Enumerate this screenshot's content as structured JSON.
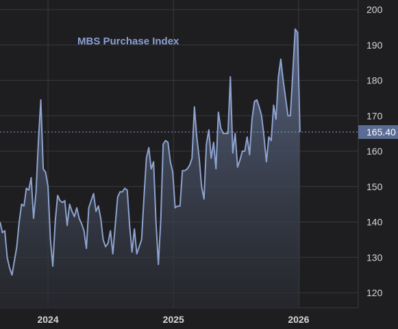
{
  "chart_data": {
    "type": "area",
    "title": "MBS Purchase Index",
    "xlabel": "",
    "ylabel": "",
    "ylim": [
      115,
      202
    ],
    "y_ticks": [
      120,
      130,
      140,
      150,
      160,
      170,
      180,
      190,
      200
    ],
    "x_ticks": [
      {
        "date": "2024-01-01",
        "label": "2024"
      },
      {
        "date": "2025-01-01",
        "label": "2025"
      },
      {
        "date": "2026-01-01",
        "label": "2026"
      }
    ],
    "x_range": [
      "2023-08-14",
      "2026-06-24"
    ],
    "grid": true,
    "last_value": 165.4,
    "last_value_label": "165.40",
    "colors": {
      "line": "#8ea3cf",
      "area_top": "#5d6b8a",
      "area_bottom": "#2a2c33",
      "last_label_bg": "#5b6c94",
      "background": "#1e1e20",
      "grid": "#3a3a3e"
    },
    "series": [
      {
        "values": [
          [
            "2023-08-14",
            140
          ],
          [
            "2023-08-21",
            137
          ],
          [
            "2023-08-28",
            137.5
          ],
          [
            "2023-09-04",
            130
          ],
          [
            "2023-09-11",
            127
          ],
          [
            "2023-09-18",
            125
          ],
          [
            "2023-09-25",
            129
          ],
          [
            "2023-10-02",
            133
          ],
          [
            "2023-10-09",
            140
          ],
          [
            "2023-10-16",
            145
          ],
          [
            "2023-10-23",
            144.5
          ],
          [
            "2023-10-30",
            149.5
          ],
          [
            "2023-11-06",
            149
          ],
          [
            "2023-11-13",
            152.5
          ],
          [
            "2023-11-20",
            141
          ],
          [
            "2023-11-27",
            148.5
          ],
          [
            "2023-12-04",
            163
          ],
          [
            "2023-12-11",
            174.5
          ],
          [
            "2023-12-18",
            155
          ],
          [
            "2023-12-25",
            154
          ],
          [
            "2024-01-01",
            150
          ],
          [
            "2024-01-08",
            135
          ],
          [
            "2024-01-15",
            127.5
          ],
          [
            "2024-01-22",
            140
          ],
          [
            "2024-01-29",
            147.5
          ],
          [
            "2024-02-05",
            146
          ],
          [
            "2024-02-12",
            145.5
          ],
          [
            "2024-02-19",
            146
          ],
          [
            "2024-02-26",
            139
          ],
          [
            "2024-03-04",
            145
          ],
          [
            "2024-03-11",
            143
          ],
          [
            "2024-03-18",
            141.5
          ],
          [
            "2024-03-25",
            144
          ],
          [
            "2024-04-01",
            141
          ],
          [
            "2024-04-08",
            139.5
          ],
          [
            "2024-04-15",
            137.5
          ],
          [
            "2024-04-22",
            132.5
          ],
          [
            "2024-04-29",
            144
          ],
          [
            "2024-05-06",
            146
          ],
          [
            "2024-05-13",
            148
          ],
          [
            "2024-05-20",
            143
          ],
          [
            "2024-05-27",
            144.5
          ],
          [
            "2024-06-03",
            141
          ],
          [
            "2024-06-10",
            135
          ],
          [
            "2024-06-17",
            133
          ],
          [
            "2024-06-24",
            134
          ],
          [
            "2024-07-01",
            137.5
          ],
          [
            "2024-07-08",
            131
          ],
          [
            "2024-07-15",
            139
          ],
          [
            "2024-07-22",
            147
          ],
          [
            "2024-07-29",
            148.5
          ],
          [
            "2024-08-05",
            148.5
          ],
          [
            "2024-08-12",
            149.5
          ],
          [
            "2024-08-19",
            149
          ],
          [
            "2024-08-26",
            139
          ],
          [
            "2024-09-02",
            131.5
          ],
          [
            "2024-09-09",
            138
          ],
          [
            "2024-09-16",
            131
          ],
          [
            "2024-09-23",
            133
          ],
          [
            "2024-09-30",
            135
          ],
          [
            "2024-10-07",
            147
          ],
          [
            "2024-10-14",
            158
          ],
          [
            "2024-10-21",
            161
          ],
          [
            "2024-10-28",
            155
          ],
          [
            "2024-11-04",
            157
          ],
          [
            "2024-11-11",
            140
          ],
          [
            "2024-11-18",
            128
          ],
          [
            "2024-11-25",
            140.5
          ],
          [
            "2024-12-02",
            162
          ],
          [
            "2024-12-09",
            163
          ],
          [
            "2024-12-16",
            162.5
          ],
          [
            "2024-12-23",
            157
          ],
          [
            "2024-12-30",
            154
          ],
          [
            "2025-01-06",
            144
          ],
          [
            "2025-01-13",
            144.5
          ],
          [
            "2025-01-20",
            144.5
          ],
          [
            "2025-01-27",
            154.5
          ],
          [
            "2025-02-03",
            154.5
          ],
          [
            "2025-02-10",
            155
          ],
          [
            "2025-02-17",
            156
          ],
          [
            "2025-02-24",
            158
          ],
          [
            "2025-03-03",
            172.5
          ],
          [
            "2025-03-10",
            164
          ],
          [
            "2025-03-17",
            158
          ],
          [
            "2025-03-24",
            150
          ],
          [
            "2025-03-31",
            146.5
          ],
          [
            "2025-04-07",
            162
          ],
          [
            "2025-04-14",
            166
          ],
          [
            "2025-04-21",
            158
          ],
          [
            "2025-04-28",
            162.5
          ],
          [
            "2025-05-05",
            155
          ],
          [
            "2025-05-12",
            171
          ],
          [
            "2025-05-19",
            166.5
          ],
          [
            "2025-05-26",
            165
          ],
          [
            "2025-06-02",
            165
          ],
          [
            "2025-06-09",
            165
          ],
          [
            "2025-06-16",
            181
          ],
          [
            "2025-06-23",
            159.5
          ],
          [
            "2025-06-30",
            165
          ],
          [
            "2025-07-07",
            155.5
          ],
          [
            "2025-07-14",
            157.5
          ],
          [
            "2025-07-21",
            160
          ],
          [
            "2025-07-28",
            160
          ],
          [
            "2025-08-04",
            164
          ],
          [
            "2025-08-11",
            159
          ],
          [
            "2025-08-18",
            169
          ],
          [
            "2025-08-25",
            174
          ],
          [
            "2025-09-01",
            174.5
          ],
          [
            "2025-09-08",
            172.5
          ],
          [
            "2025-09-15",
            170
          ],
          [
            "2025-09-22",
            164
          ],
          [
            "2025-09-29",
            157
          ],
          [
            "2025-10-06",
            164
          ],
          [
            "2025-10-13",
            163
          ],
          [
            "2025-10-20",
            173
          ],
          [
            "2025-10-27",
            169
          ],
          [
            "2025-11-03",
            181
          ],
          [
            "2025-11-10",
            186
          ],
          [
            "2025-11-17",
            180
          ],
          [
            "2025-11-24",
            175
          ],
          [
            "2025-12-01",
            170
          ],
          [
            "2025-12-08",
            170
          ],
          [
            "2025-12-15",
            182
          ],
          [
            "2025-12-22",
            194.5
          ],
          [
            "2025-12-29",
            193.5
          ],
          [
            "2026-01-05",
            165.4
          ]
        ]
      }
    ]
  }
}
